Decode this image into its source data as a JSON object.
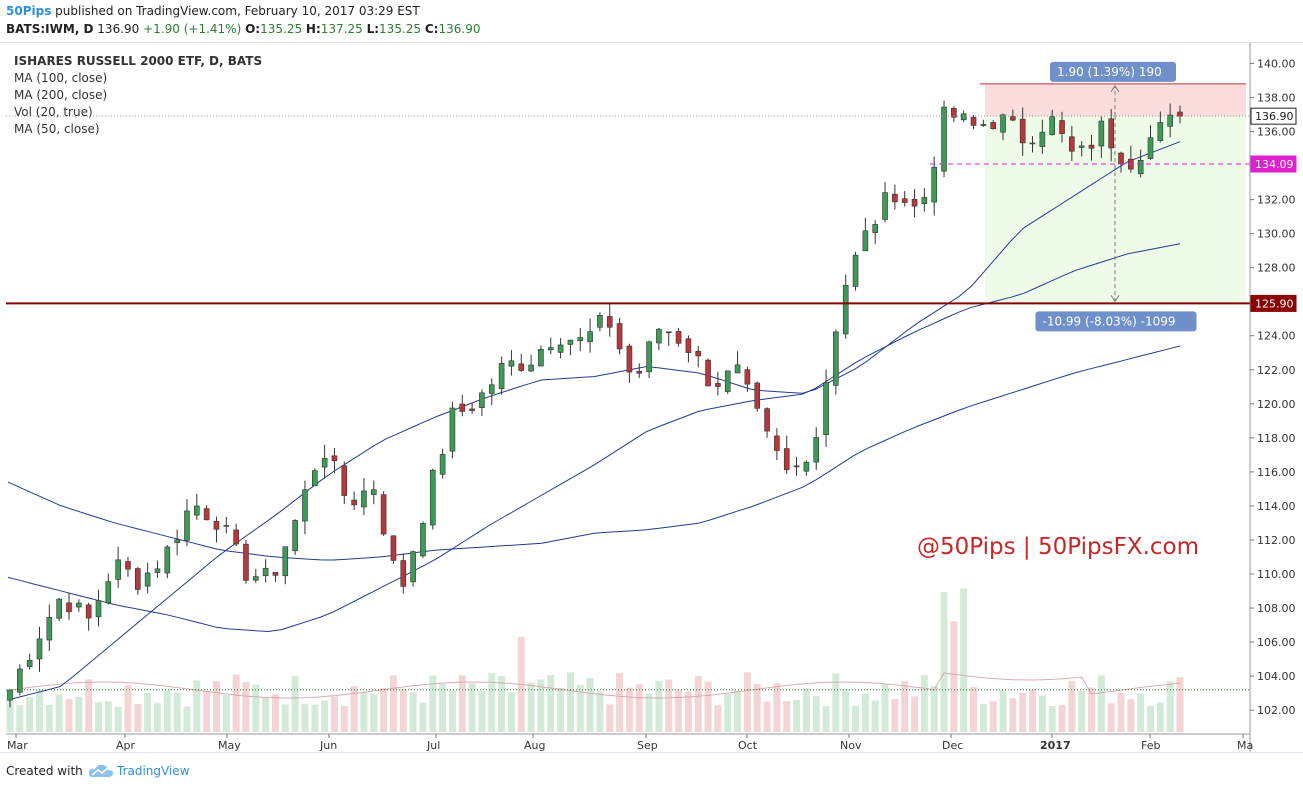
{
  "header": {
    "author": "50Pips",
    "published_text": "published on TradingView.com, February 10, 2017 03:29 EST",
    "symbol_line": "BATS:IWM, D",
    "last": "136.90",
    "change": "+1.90 (+1.41%)",
    "o_label": "O:",
    "o": "135.25",
    "h_label": "H:",
    "h": "137.25",
    "l_label": "L:",
    "l": "135.25",
    "c_label": "C:",
    "c": "136.90"
  },
  "legend": {
    "title": "ISHARES RUSSELL 2000 ETF, D, BATS",
    "items": [
      "MA (100, close)",
      "MA (200, close)",
      "Vol (20, true)",
      "MA (50, close)"
    ]
  },
  "watermark": "@50Pips | 50PipsFX.com",
  "footer": {
    "created": "Created with",
    "brand": "TradingView"
  },
  "colors": {
    "up": "#3d9b57",
    "down": "#b8373c",
    "ma": "#253a8f",
    "support": "#8b0000",
    "dashed": "#e020d0",
    "watermark": "#c62828",
    "range_up_bg": "#eefbe8",
    "range_down_bg": "#fcdddd",
    "tag": "#6f90c9"
  },
  "chart_data": {
    "type": "candlestick",
    "symbol": "BATS:IWM",
    "ylim": [
      100.6,
      141.2
    ],
    "y_ticks": [
      "102.00",
      "104.00",
      "106.00",
      "108.00",
      "110.00",
      "112.00",
      "114.00",
      "116.00",
      "118.00",
      "120.00",
      "122.00",
      "124.00",
      "126.00",
      "128.00",
      "130.00",
      "132.00",
      "134.00",
      "136.00",
      "138.00",
      "140.00"
    ],
    "x_ticks": [
      "Mar",
      "Apr",
      "May",
      "Jun",
      "Jul",
      "Aug",
      "Sep",
      "Oct",
      "Nov",
      "Dec",
      "2017",
      "Feb",
      "Ma"
    ],
    "close_points": [
      [
        "Mar",
        103.2
      ],
      [
        "Mar",
        106.2
      ],
      [
        "Mar",
        108.8
      ],
      [
        "Mar",
        107.2
      ],
      [
        "Apr",
        110.6
      ],
      [
        "Apr",
        109.6
      ],
      [
        "Apr",
        111.2
      ],
      [
        "May",
        114.2
      ],
      [
        "May",
        113.2
      ],
      [
        "May",
        110.2
      ],
      [
        "Jun",
        109.6
      ],
      [
        "Jun",
        113.2
      ],
      [
        "Jun",
        117.6
      ],
      [
        "Jun",
        114.2
      ],
      [
        "Jun",
        115.2
      ],
      [
        "Jul",
        108.8
      ],
      [
        "Jul",
        114.2
      ],
      [
        "Jul",
        119.2
      ],
      [
        "Aug",
        120.2
      ],
      [
        "Aug",
        122.2
      ],
      [
        "Aug",
        122.6
      ],
      [
        "Sep",
        124.2
      ],
      [
        "Sep",
        123.6
      ],
      [
        "Sep",
        125.0
      ],
      [
        "Sep",
        121.2
      ],
      [
        "Oct",
        124.6
      ],
      [
        "Oct",
        123.6
      ],
      [
        "Oct",
        121.2
      ],
      [
        "Oct",
        121.8
      ],
      [
        "Nov",
        118.2
      ],
      [
        "Nov",
        115.6
      ],
      [
        "Nov",
        118.2
      ],
      [
        "Nov",
        126.6
      ],
      [
        "Nov",
        130.2
      ],
      [
        "Nov",
        132.6
      ],
      [
        "Dec",
        131.2
      ],
      [
        "Dec",
        137.2
      ],
      [
        "Dec",
        136.2
      ],
      [
        "Dec",
        136.8
      ],
      [
        "2017",
        135.6
      ],
      [
        "2017",
        136.8
      ],
      [
        "2017",
        134.2
      ],
      [
        "2017",
        136.2
      ],
      [
        "Feb",
        134.2
      ],
      [
        "Feb",
        135.8
      ],
      [
        "Feb",
        136.9
      ]
    ],
    "moving_averages": [
      {
        "name": "MA (50, close)",
        "points": [
          [
            102.6
          ],
          [
            103.4
          ],
          [
            106.0
          ],
          [
            108.6
          ],
          [
            111.2
          ],
          [
            113.4
          ],
          [
            115.8
          ],
          [
            117.8
          ],
          [
            119.2
          ],
          [
            120.4
          ],
          [
            121.4
          ],
          [
            121.6
          ],
          [
            122.2
          ],
          [
            121.8
          ],
          [
            120.8
          ],
          [
            120.6
          ],
          [
            122.2
          ],
          [
            124.6
          ],
          [
            126.6
          ],
          [
            130.2
          ],
          [
            132.2
          ],
          [
            134.2
          ],
          [
            135.4
          ]
        ]
      },
      {
        "name": "MA (100, close)",
        "points": [
          [
            109.8
          ],
          [
            109.0
          ],
          [
            108.2
          ],
          [
            107.6
          ],
          [
            106.8
          ],
          [
            106.6
          ],
          [
            107.6
          ],
          [
            109.2
          ],
          [
            110.8
          ],
          [
            112.8
          ],
          [
            114.6
          ],
          [
            116.4
          ],
          [
            118.4
          ],
          [
            119.6
          ],
          [
            120.2
          ],
          [
            120.6
          ],
          [
            122.6
          ],
          [
            124.2
          ],
          [
            125.6
          ],
          [
            126.4
          ],
          [
            127.8
          ],
          [
            128.8
          ],
          [
            129.4
          ]
        ]
      },
      {
        "name": "MA (200, close)",
        "points": [
          [
            115.4
          ],
          [
            114.0
          ],
          [
            113.0
          ],
          [
            112.2
          ],
          [
            111.4
          ],
          [
            111.0
          ],
          [
            110.8
          ],
          [
            111.0
          ],
          [
            111.4
          ],
          [
            111.6
          ],
          [
            111.8
          ],
          [
            112.4
          ],
          [
            112.6
          ],
          [
            113.0
          ],
          [
            114.0
          ],
          [
            115.2
          ],
          [
            117.2
          ],
          [
            118.6
          ],
          [
            119.8
          ],
          [
            120.8
          ],
          [
            121.8
          ],
          [
            122.6
          ],
          [
            123.4
          ]
        ]
      }
    ],
    "price_labels": [
      {
        "value": 136.9,
        "text": "136.90"
      },
      {
        "value": 134.09,
        "text": "134.09"
      },
      {
        "value": 125.9,
        "text": "125.90"
      }
    ],
    "support_line": {
      "value": 125.9
    },
    "dashed_level": {
      "value": 134.09
    },
    "measure_up": {
      "from": 136.9,
      "to": 138.8,
      "text": "1.90 (1.39%) 190"
    },
    "measure_down": {
      "from": 136.9,
      "to": 125.9,
      "text": "-10.99 (-8.03%) -1099"
    },
    "volume_reference": {
      "value": 103.2
    }
  }
}
